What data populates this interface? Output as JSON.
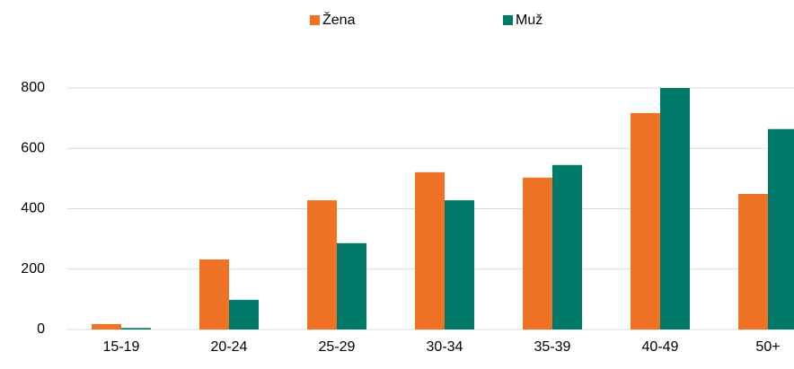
{
  "chart_data": {
    "type": "bar",
    "categories": [
      "15-19",
      "20-24",
      "25-29",
      "30-34",
      "35-39",
      "40-49",
      "50+"
    ],
    "series": [
      {
        "name": "Žena",
        "color": "#f07224",
        "values": [
          18,
          232,
          428,
          521,
          503,
          717,
          449
        ]
      },
      {
        "name": "Muž",
        "color": "#007a68",
        "values": [
          5,
          98,
          286,
          428,
          545,
          800,
          664
        ]
      }
    ],
    "ylim": [
      0,
      800
    ],
    "yticks": [
      0,
      200,
      400,
      600,
      800
    ],
    "grid": true,
    "legend": "top"
  }
}
